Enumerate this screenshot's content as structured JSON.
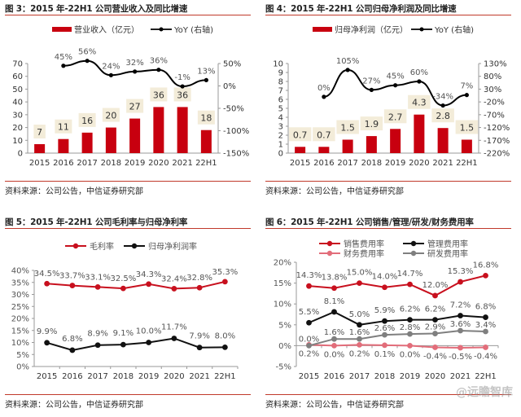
{
  "source_text": "资料来源：公司公告，中信证券研究部",
  "watermark": "@远瞻智库",
  "chart_data": [
    {
      "id": "fig3",
      "type": "bar",
      "title": "图 3：2015 年-22H1 公司营业收入及同比增速",
      "categories": [
        "2015",
        "2016",
        "2017",
        "2018",
        "2019",
        "2020",
        "2021",
        "22H1"
      ],
      "ylim": [
        0,
        70
      ],
      "yticks": [
        0,
        10,
        20,
        30,
        40,
        50,
        60,
        70
      ],
      "y2lim": [
        -150,
        50
      ],
      "y2ticks": [
        -150,
        -100,
        -50,
        0,
        50
      ],
      "y2_suffix": "%",
      "series": [
        {
          "name": "营业收入（亿元）",
          "kind": "bar",
          "axis": "left",
          "color": "#C8000F",
          "values": [
            7,
            11,
            16,
            20,
            27,
            36,
            36,
            18
          ],
          "labels": [
            "7",
            "11",
            "16",
            "20",
            "27",
            "36",
            "36",
            "18"
          ]
        },
        {
          "name": "YoY (右轴)",
          "kind": "line",
          "axis": "right",
          "color": "#000000",
          "values": [
            null,
            45,
            56,
            24,
            32,
            36,
            -1,
            13
          ],
          "labels": [
            "",
            "45%",
            "56%",
            "24%",
            "32%",
            "36%",
            "-1%",
            "13%"
          ]
        }
      ],
      "legend": "top"
    },
    {
      "id": "fig4",
      "type": "bar",
      "title": "图 4：2015 年-22H1 公司归母净利润及同比增速",
      "categories": [
        "2015",
        "2016",
        "2017",
        "2018",
        "2019",
        "2020",
        "2021",
        "22H1"
      ],
      "ylim": [
        0,
        10
      ],
      "yticks": [
        0,
        1,
        2,
        3,
        4,
        5,
        6,
        7,
        8,
        9,
        10
      ],
      "y2lim": [
        -220,
        130
      ],
      "y2ticks": [
        -220,
        -170,
        -120,
        -70,
        -20,
        30,
        80,
        130
      ],
      "y2_suffix": "%",
      "series": [
        {
          "name": "归母净利润（亿元）",
          "kind": "bar",
          "axis": "left",
          "color": "#C8000F",
          "values": [
            0.7,
            0.7,
            1.5,
            1.9,
            2.7,
            4.3,
            2.8,
            1.5
          ],
          "labels": [
            "0.7",
            "0.7",
            "1.5",
            "1.9",
            "2.7",
            "4.3",
            "2.8",
            "1.5"
          ]
        },
        {
          "name": "YoY (右轴)",
          "kind": "line",
          "axis": "right",
          "color": "#000000",
          "values": [
            null,
            0,
            105,
            27,
            45,
            60,
            -34,
            7
          ],
          "labels": [
            "",
            "0%",
            "105%",
            "27%",
            "45%",
            "60%",
            "-34%",
            "7%"
          ]
        }
      ],
      "legend": "top"
    },
    {
      "id": "fig5",
      "type": "line",
      "title": "图 5：2015 年-22H1 公司毛利率与归母净利率",
      "categories": [
        "2015",
        "2016",
        "2017",
        "2018",
        "2019",
        "2020",
        "2021",
        "22H1"
      ],
      "ylim": [
        0,
        40
      ],
      "yticks": [
        0,
        5,
        10,
        15,
        20,
        25,
        30,
        35,
        40
      ],
      "y_suffix": "%",
      "series": [
        {
          "name": "毛利率",
          "color": "#C8101E",
          "values": [
            34.5,
            33.7,
            33.1,
            32.5,
            34.3,
            32.4,
            32.8,
            35.3
          ],
          "labels": [
            "34.5%",
            "33.7%",
            "33.1%",
            "32.5%",
            "34.3%",
            "32.4%",
            "32.8%",
            "35.3%"
          ]
        },
        {
          "name": "归母净利润率",
          "color": "#111111",
          "values": [
            9.9,
            6.8,
            8.9,
            9.1,
            10.0,
            11.7,
            7.9,
            8.0
          ],
          "labels": [
            "9.9%",
            "6.8%",
            "8.9%",
            "9.1%",
            "10.0%",
            "11.7%",
            "7.9%",
            "8.0%"
          ]
        }
      ],
      "legend": "top"
    },
    {
      "id": "fig6",
      "type": "line",
      "title": "图 6：2015 年-22H1 公司销售/管理/研发/财务费用率",
      "categories": [
        "2015",
        "2016",
        "2017",
        "2018",
        "2019",
        "2020",
        "2021",
        "22H1"
      ],
      "ylim": [
        -5,
        20
      ],
      "yticks": [
        -5,
        0,
        5,
        10,
        15,
        20
      ],
      "y_suffix": "%",
      "series": [
        {
          "name": "销售费用率",
          "color": "#C8101E",
          "values": [
            14.3,
            13.8,
            15.0,
            14.0,
            14.7,
            12.0,
            15.3,
            16.8
          ],
          "labels": [
            "14.3%",
            "13.8%",
            "15.0%",
            "14.0%",
            "14.7%",
            "12.0%",
            "15.3%",
            "16.8%"
          ]
        },
        {
          "name": "管理费用率",
          "color": "#111111",
          "values": [
            5.5,
            8.1,
            5.0,
            5.9,
            6.2,
            6.2,
            7.2,
            6.8
          ],
          "labels": [
            "5.5%",
            "8.1%",
            "5.0%",
            "5.9%",
            "6.2%",
            "6.2%",
            "7.2%",
            "6.8%"
          ]
        },
        {
          "name": "财务费用率",
          "color": "#E26D7A",
          "values": [
            0.2,
            0.0,
            0.2,
            0.1,
            0.0,
            -0.4,
            -0.5,
            -0.4
          ],
          "labels": [
            "0.2%",
            "0.0%",
            "0.2%",
            "0.1%",
            "0.0%",
            "-0.4%",
            "-0.5%",
            "-0.4%"
          ]
        },
        {
          "name": "研发费用率",
          "color": "#7F7F7F",
          "values": [
            0.0,
            1.6,
            1.6,
            2.6,
            2.8,
            2.9,
            3.6,
            3.4
          ],
          "labels": [
            "0.0%",
            "1.6%",
            "1.6%",
            "2.6%",
            "2.8%",
            "2.9%",
            "3.6%",
            "3.4%"
          ]
        }
      ],
      "legend": "top"
    }
  ]
}
